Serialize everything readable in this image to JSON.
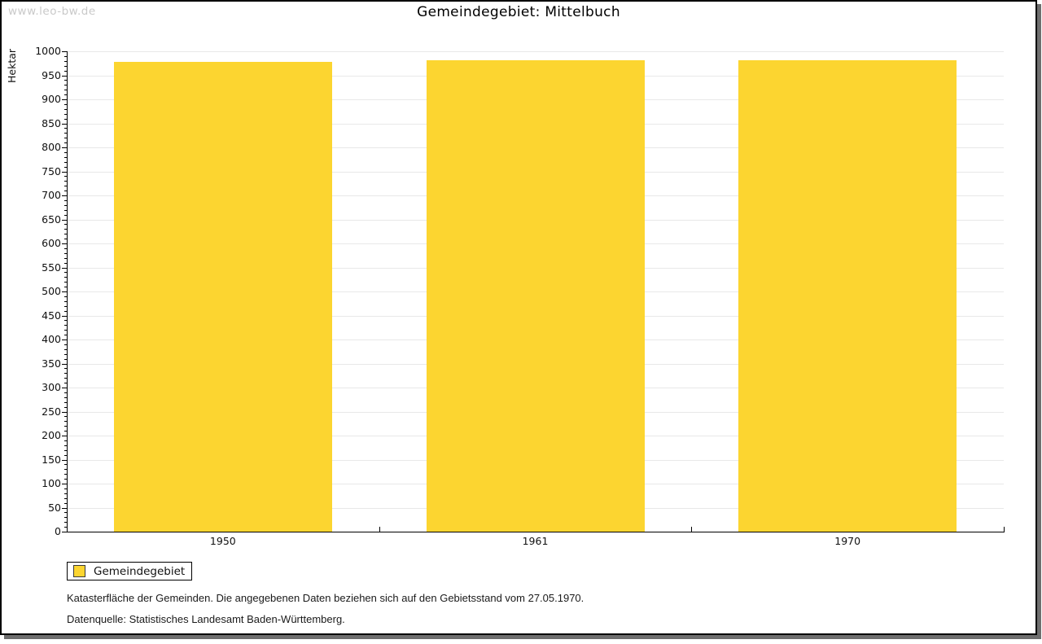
{
  "watermark": "www.leo-bw.de",
  "title": "Gemeindegebiet: Mittelbuch",
  "legend": {
    "label": "Gemeindegebiet"
  },
  "footnotes": {
    "line1": "Katasterfläche der Gemeinden. Die angegebenen Daten beziehen sich auf den Gebietsstand vom 27.05.1970.",
    "line2": "Datenquelle: Statistisches Landesamt Baden-Württemberg."
  },
  "colors": {
    "bar": "#FCD530",
    "grid": "#E8E8E8",
    "axis": "#000000",
    "watermark": "#C9C9C9",
    "shadow": "#6E6E6E"
  },
  "chart_data": {
    "type": "bar",
    "title": "Gemeindegebiet: Mittelbuch",
    "categories": [
      "1950",
      "1961",
      "1970"
    ],
    "series": [
      {
        "name": "Gemeindegebiet",
        "values": [
          978,
          982,
          981
        ]
      }
    ],
    "xlabel": "",
    "ylabel": "Hektar",
    "ylim": [
      0,
      1000
    ],
    "y_major_step": 50,
    "y_minor_step": 10,
    "y_tick_labels": [
      "0",
      "50",
      "100",
      "150",
      "200",
      "250",
      "300",
      "350",
      "400",
      "450",
      "500",
      "550",
      "600",
      "650",
      "700",
      "750",
      "800",
      "850",
      "900",
      "950",
      "1000"
    ],
    "grid": true,
    "legend_position": "bottom-left",
    "bar_color": "#FCD530"
  }
}
